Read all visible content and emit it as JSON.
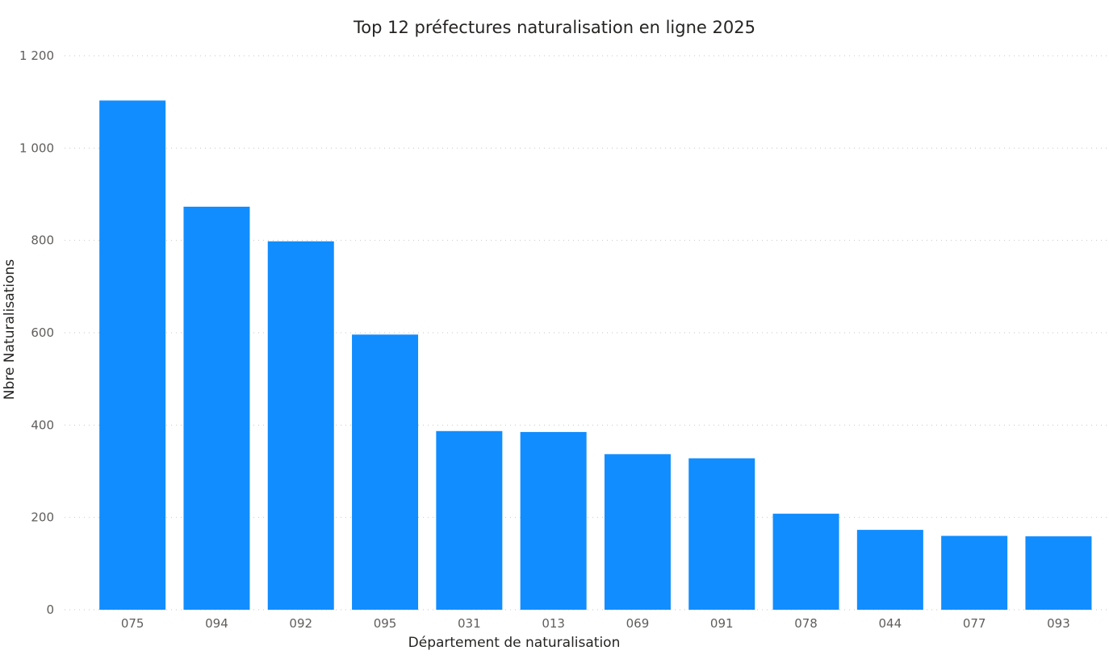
{
  "chart_data": {
    "type": "bar",
    "title": "Top 12 préfectures naturalisation en ligne 2025",
    "xlabel": "Département de naturalisation",
    "ylabel": "Nbre Naturalisations",
    "categories": [
      "075",
      "094",
      "092",
      "095",
      "031",
      "013",
      "069",
      "091",
      "078",
      "044",
      "077",
      "093"
    ],
    "values": [
      1103,
      873,
      798,
      596,
      387,
      385,
      337,
      328,
      208,
      173,
      160,
      159
    ],
    "ylim": [
      0,
      1200
    ],
    "yticks": [
      0,
      200,
      400,
      600,
      800,
      1000,
      1200
    ],
    "ytick_labels": [
      "0",
      "200",
      "400",
      "600",
      "800",
      "1 000",
      "1 200"
    ],
    "grid": true,
    "bar_color": "#118DFF",
    "grid_color": "#C8C6C4",
    "text_color": "#605E5C"
  }
}
